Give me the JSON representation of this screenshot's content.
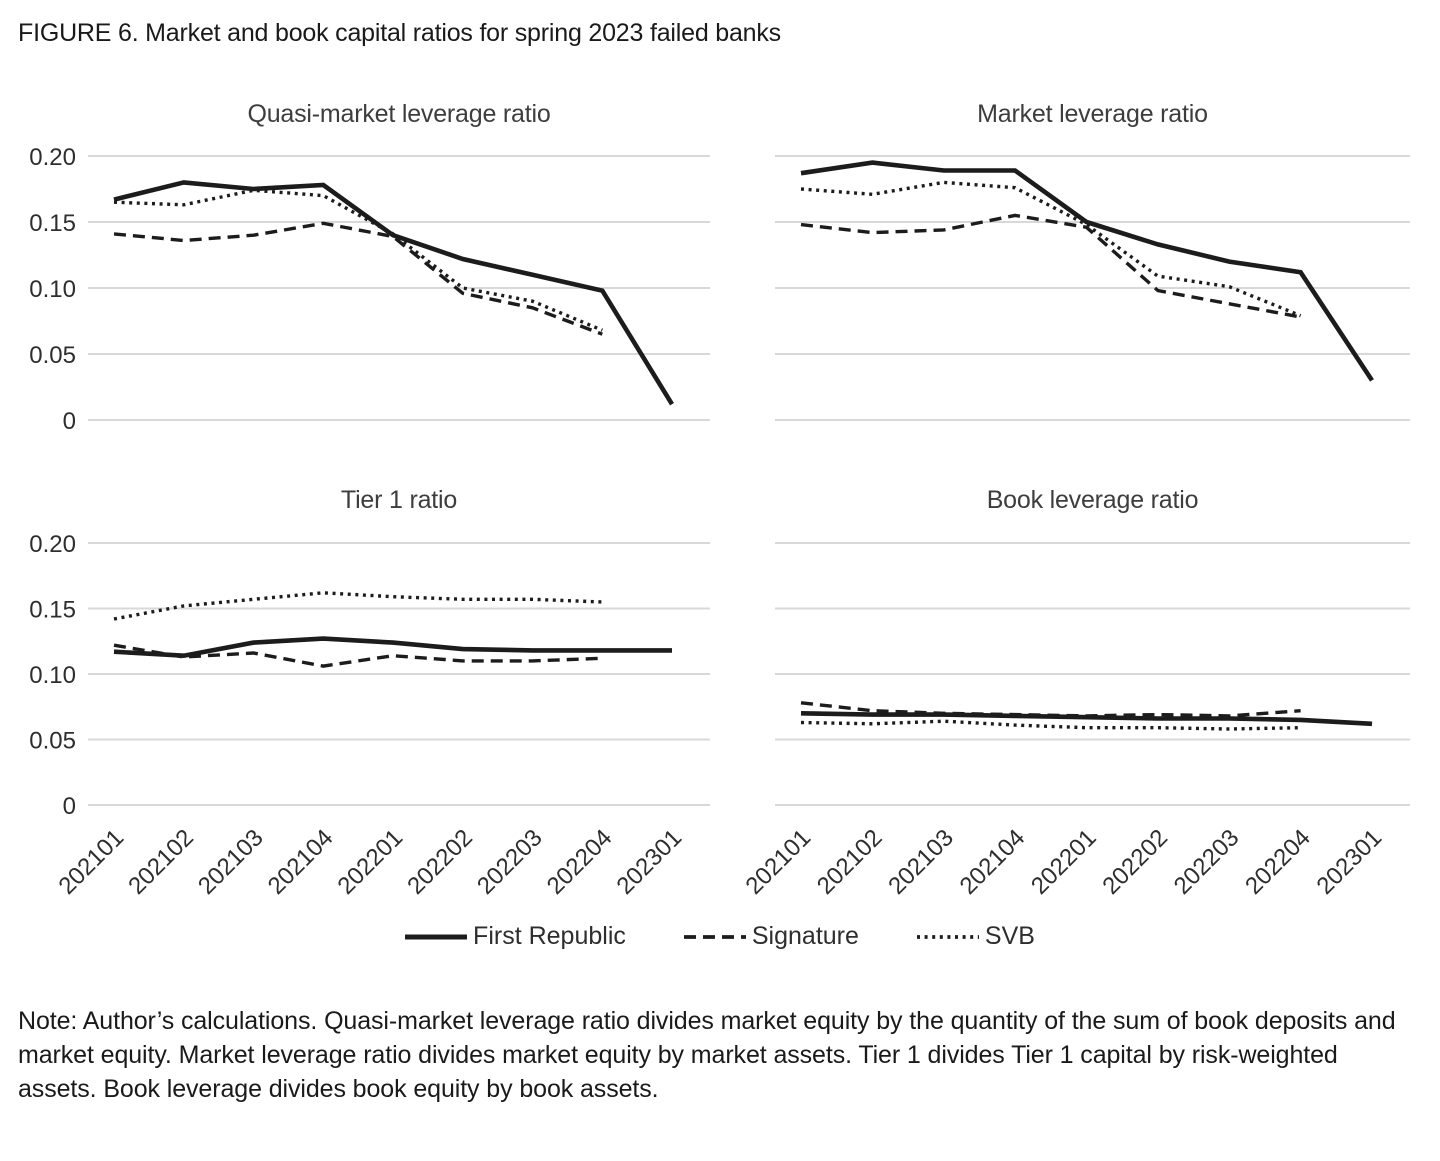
{
  "figure": {
    "title": "FIGURE 6. Market and book capital ratios for spring 2023 failed banks",
    "note": "Note: Author’s calculations. Quasi-market leverage ratio divides market equity by the quantity of the sum of book deposits and market equity. Market leverage ratio divides market equity by market assets. Tier 1 divides Tier 1 capital by risk-weighted assets. Book leverage divides book equity by book assets."
  },
  "legend": [
    {
      "label": "First Republic",
      "style": "solid"
    },
    {
      "label": "Signature",
      "style": "dashed"
    },
    {
      "label": "SVB",
      "style": "dotted"
    }
  ],
  "style": {
    "line_color": "#1c1c1c",
    "grid_color": "#d8d8d8",
    "background": "#ffffff"
  },
  "chart_data": [
    {
      "type": "line",
      "title": "Quasi-market leverage ratio",
      "position": "top-left",
      "categories": [
        "202101",
        "202102",
        "202103",
        "202104",
        "202201",
        "202202",
        "202203",
        "202204",
        "202301"
      ],
      "y_ticks": [
        "0.20",
        "0.15",
        "0.10",
        "0.05",
        "0"
      ],
      "ylim": [
        0,
        0.2
      ],
      "grid": true,
      "series": [
        {
          "name": "First Republic",
          "style": "solid",
          "values": [
            0.167,
            0.18,
            0.175,
            0.178,
            0.14,
            0.122,
            0.11,
            0.098,
            0.012
          ]
        },
        {
          "name": "Signature",
          "style": "dashed",
          "values": [
            0.141,
            0.136,
            0.14,
            0.149,
            0.139,
            0.096,
            0.085,
            0.065
          ]
        },
        {
          "name": "SVB",
          "style": "dotted",
          "values": [
            0.165,
            0.163,
            0.174,
            0.17,
            0.141,
            0.1,
            0.09,
            0.068
          ]
        }
      ]
    },
    {
      "type": "line",
      "title": "Market leverage ratio",
      "position": "top-right",
      "categories": [
        "202101",
        "202102",
        "202103",
        "202104",
        "202201",
        "202202",
        "202203",
        "202204",
        "202301"
      ],
      "y_ticks": [
        "0.20",
        "0.15",
        "0.10",
        "0.05",
        "0"
      ],
      "ylim": [
        0,
        0.2
      ],
      "grid": true,
      "series": [
        {
          "name": "First Republic",
          "style": "solid",
          "values": [
            0.187,
            0.195,
            0.189,
            0.189,
            0.15,
            0.133,
            0.12,
            0.112,
            0.03
          ]
        },
        {
          "name": "Signature",
          "style": "dashed",
          "values": [
            0.148,
            0.142,
            0.144,
            0.155,
            0.146,
            0.098,
            0.088,
            0.078
          ]
        },
        {
          "name": "SVB",
          "style": "dotted",
          "values": [
            0.175,
            0.171,
            0.18,
            0.176,
            0.148,
            0.109,
            0.101,
            0.079
          ]
        }
      ]
    },
    {
      "type": "line",
      "title": "Tier 1 ratio",
      "position": "bottom-left",
      "categories": [
        "202101",
        "202102",
        "202103",
        "202104",
        "202201",
        "202202",
        "202203",
        "202204",
        "202301"
      ],
      "y_ticks": [
        "0.20",
        "0.15",
        "0.10",
        "0.05",
        "0"
      ],
      "ylim": [
        0,
        0.2
      ],
      "grid": true,
      "series": [
        {
          "name": "First Republic",
          "style": "solid",
          "values": [
            0.117,
            0.114,
            0.124,
            0.127,
            0.124,
            0.119,
            0.118,
            0.118,
            0.118
          ]
        },
        {
          "name": "Signature",
          "style": "dashed",
          "values": [
            0.122,
            0.113,
            0.116,
            0.106,
            0.114,
            0.11,
            0.11,
            0.112
          ]
        },
        {
          "name": "SVB",
          "style": "dotted",
          "values": [
            0.142,
            0.152,
            0.157,
            0.162,
            0.159,
            0.157,
            0.157,
            0.155
          ]
        }
      ]
    },
    {
      "type": "line",
      "title": "Book leverage ratio",
      "position": "bottom-right",
      "categories": [
        "202101",
        "202102",
        "202103",
        "202104",
        "202201",
        "202202",
        "202203",
        "202204",
        "202301"
      ],
      "y_ticks": [
        "0.20",
        "0.15",
        "0.10",
        "0.05",
        "0"
      ],
      "ylim": [
        0,
        0.2
      ],
      "grid": true,
      "series": [
        {
          "name": "First Republic",
          "style": "solid",
          "values": [
            0.07,
            0.069,
            0.069,
            0.068,
            0.067,
            0.066,
            0.066,
            0.065,
            0.062
          ]
        },
        {
          "name": "Signature",
          "style": "dashed",
          "values": [
            0.078,
            0.072,
            0.07,
            0.069,
            0.068,
            0.069,
            0.068,
            0.072
          ]
        },
        {
          "name": "SVB",
          "style": "dotted",
          "values": [
            0.063,
            0.062,
            0.064,
            0.061,
            0.059,
            0.059,
            0.058,
            0.059
          ]
        }
      ]
    }
  ]
}
